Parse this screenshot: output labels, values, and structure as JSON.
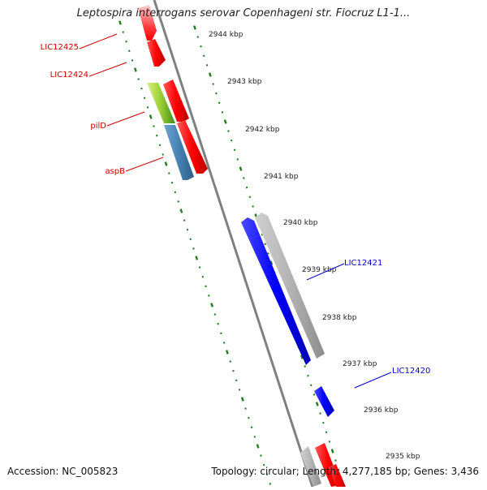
{
  "title": "Leptospira interrogans serovar Copenhageni str. Fiocruz L1-1...",
  "accession": "Accession: NC_005823",
  "summary": "Topology: circular; Length: 4,277,185 bp; Genes: 3,436",
  "colors": {
    "backbone": "#808080",
    "ticks": "#1e7d1e",
    "red_gene": "#ff0000",
    "blue_gene": "#0000ff",
    "gray_gene": "#b4b4b4",
    "steel_gene": "#4682b4",
    "lime_gene": "#9acd32",
    "red_label": "#cc0000",
    "blue_label": "#0000cc"
  },
  "scale_labels": [
    "2944 kbp",
    "2943 kbp",
    "2942 kbp",
    "2941 kbp",
    "2940 kbp",
    "2939 kbp",
    "2938 kbp",
    "2937 kbp",
    "2936 kbp",
    "2935 kbp"
  ],
  "gene_labels": [
    {
      "text": "LIC12425",
      "color": "red"
    },
    {
      "text": "LIC12424",
      "color": "red"
    },
    {
      "text": "pilD",
      "color": "red"
    },
    {
      "text": "aspB",
      "color": "red"
    },
    {
      "text": "LIC12421",
      "color": "blue"
    },
    {
      "text": "LIC12420",
      "color": "blue"
    }
  ]
}
